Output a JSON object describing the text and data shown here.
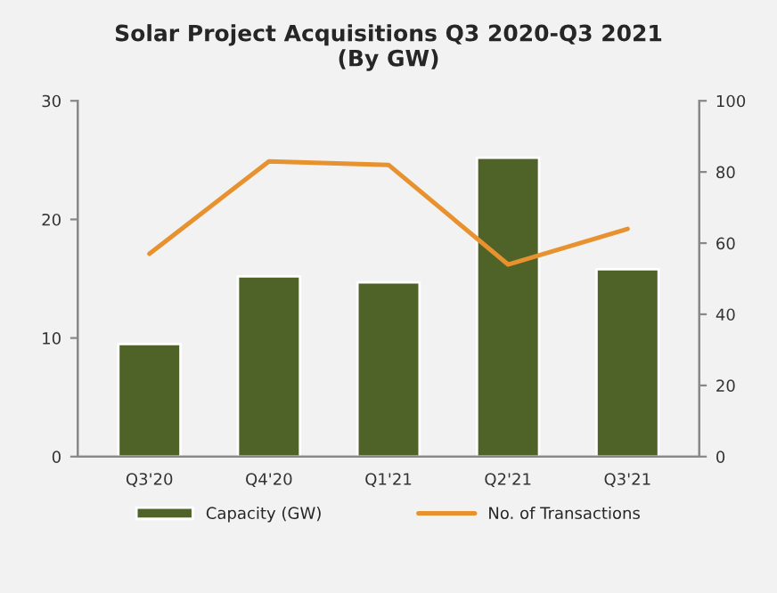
{
  "chart_data": {
    "type": "bar",
    "title": "Solar Project Acquisitions Q3 2020-Q3 2021\n(By GW)",
    "categories": [
      "Q3'20",
      "Q4'20",
      "Q1'21",
      "Q2'21",
      "Q3'21"
    ],
    "series": [
      {
        "name": "Capacity (GW)",
        "color": "#4f6228",
        "values": [
          9.5,
          15.2,
          14.7,
          25.2,
          15.8
        ]
      },
      {
        "name": "No. of Transactions",
        "type": "line",
        "axis": "y2",
        "color": "#e8912f",
        "values": [
          57,
          83,
          82,
          54,
          64
        ]
      }
    ],
    "ylim": [
      0,
      30
    ],
    "yticks": [
      0,
      10,
      20,
      30
    ],
    "y2lim": [
      0,
      100
    ],
    "y2ticks": [
      0,
      20,
      40,
      60,
      80,
      100
    ],
    "grid": false,
    "legend": "bottom"
  }
}
